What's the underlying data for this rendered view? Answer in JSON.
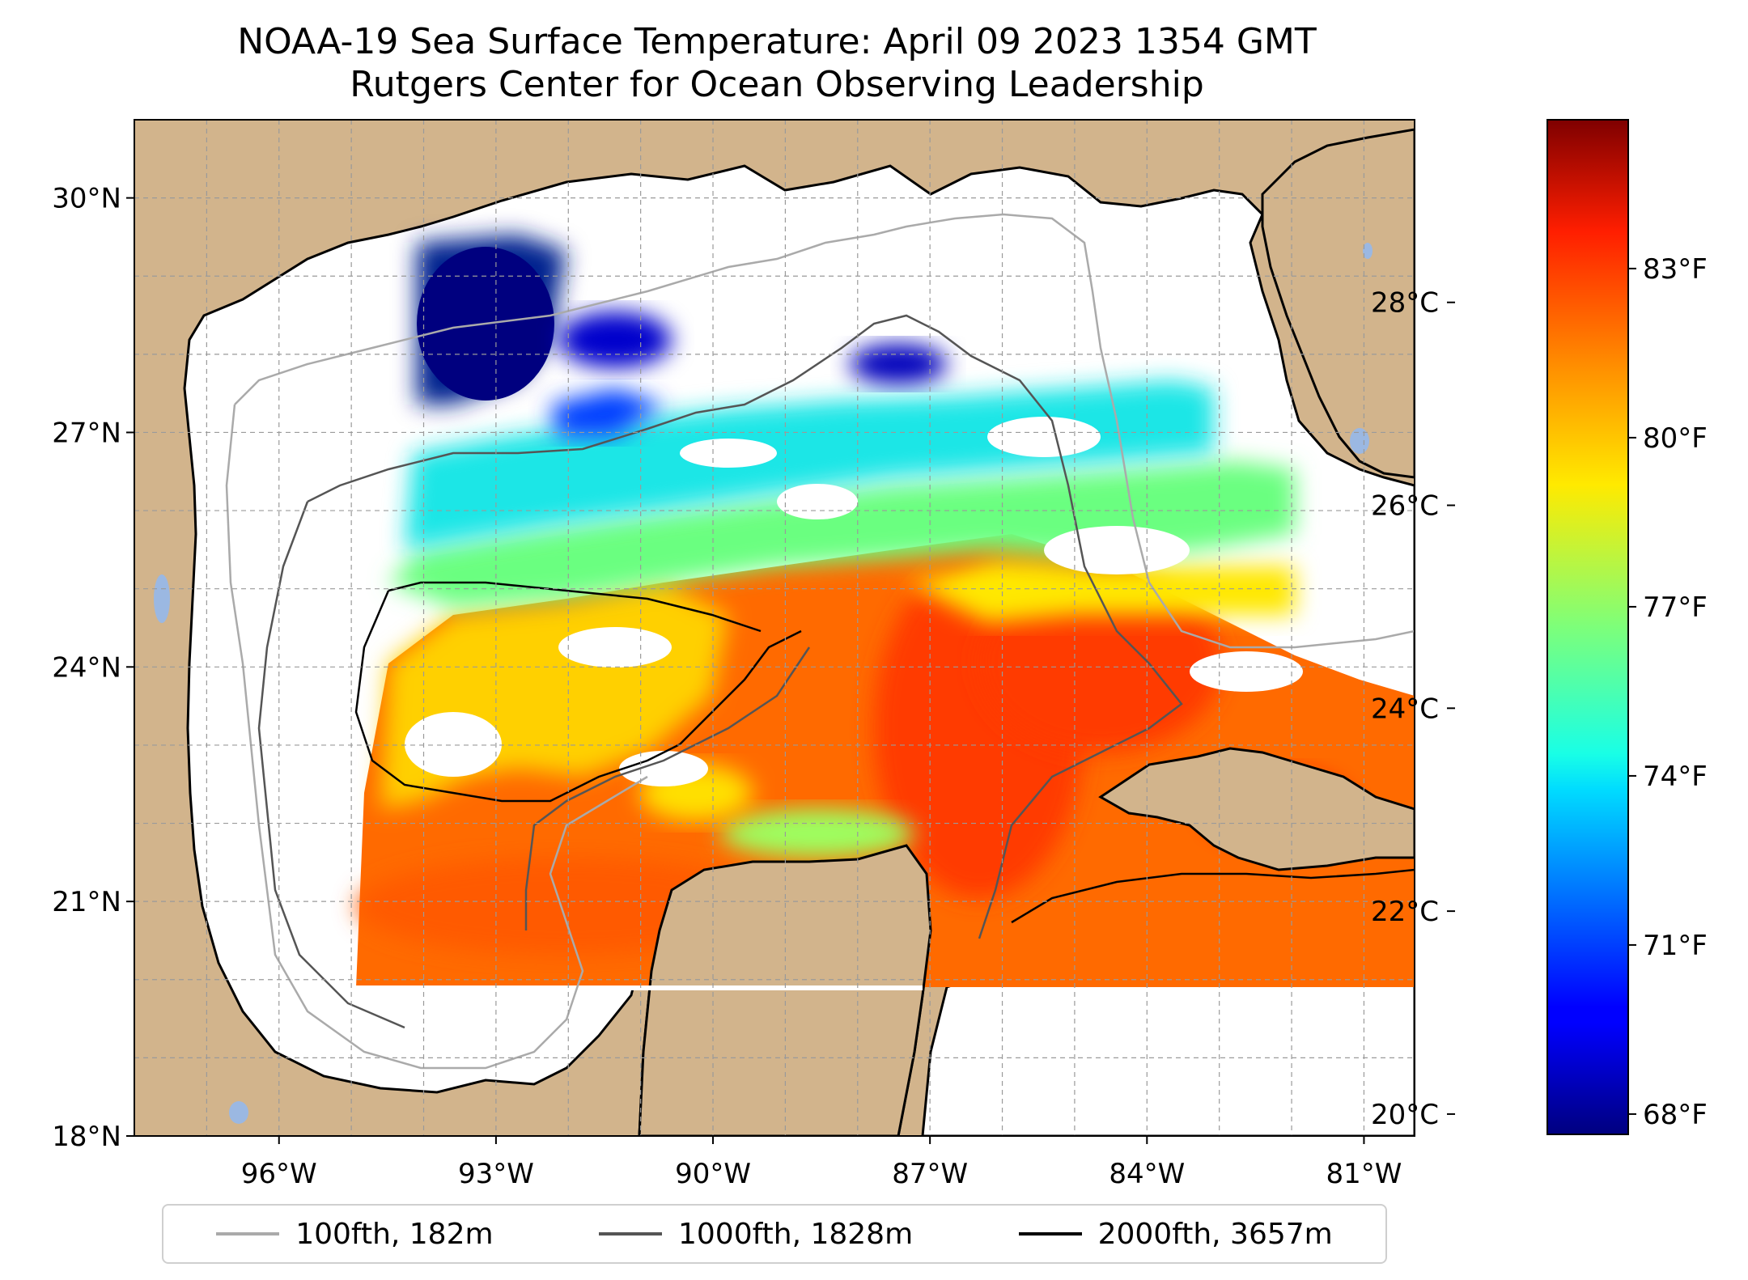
{
  "title": {
    "line1": "NOAA-19 Sea Surface Temperature: April 09 2023 1354 GMT",
    "line2": "Rutgers Center for Ocean Observing Leadership"
  },
  "map": {
    "lon_range": [
      -98,
      -80.3
    ],
    "lat_range": [
      18,
      31
    ],
    "lat_ticks": [
      {
        "value": 30,
        "label": "30°N"
      },
      {
        "value": 27,
        "label": "27°N"
      },
      {
        "value": 24,
        "label": "24°N"
      },
      {
        "value": 21,
        "label": "21°N"
      },
      {
        "value": 18,
        "label": "18°N"
      }
    ],
    "lon_ticks": [
      {
        "value": -96,
        "label": "96°W"
      },
      {
        "value": -93,
        "label": "93°W"
      },
      {
        "value": -90,
        "label": "90°W"
      },
      {
        "value": -87,
        "label": "87°W"
      },
      {
        "value": -84,
        "label": "84°W"
      },
      {
        "value": -81,
        "label": "81°W"
      }
    ],
    "land_color": "#d2b48c",
    "water_body_color": "#9bb8e2",
    "grid": "dashed gray"
  },
  "colorbar": {
    "colormap": "jet",
    "celsius_range": [
      19.8,
      29.8
    ],
    "celsius_ticks": [
      {
        "value": 20,
        "label": "20°C"
      },
      {
        "value": 22,
        "label": "22°C"
      },
      {
        "value": 24,
        "label": "24°C"
      },
      {
        "value": 26,
        "label": "26°C"
      },
      {
        "value": 28,
        "label": "28°C"
      }
    ],
    "fahrenheit_ticks": [
      {
        "value": 68,
        "label": "68°F"
      },
      {
        "value": 71,
        "label": "71°F"
      },
      {
        "value": 74,
        "label": "74°F"
      },
      {
        "value": 77,
        "label": "77°F"
      },
      {
        "value": 80,
        "label": "80°F"
      },
      {
        "value": 83,
        "label": "83°F"
      }
    ]
  },
  "legend": {
    "items": [
      {
        "label": "100fth, 182m",
        "color": "#aaaaaa"
      },
      {
        "label": "1000fth, 1828m",
        "color": "#555555"
      },
      {
        "label": "2000fth, 3657m",
        "color": "#000000"
      }
    ]
  }
}
